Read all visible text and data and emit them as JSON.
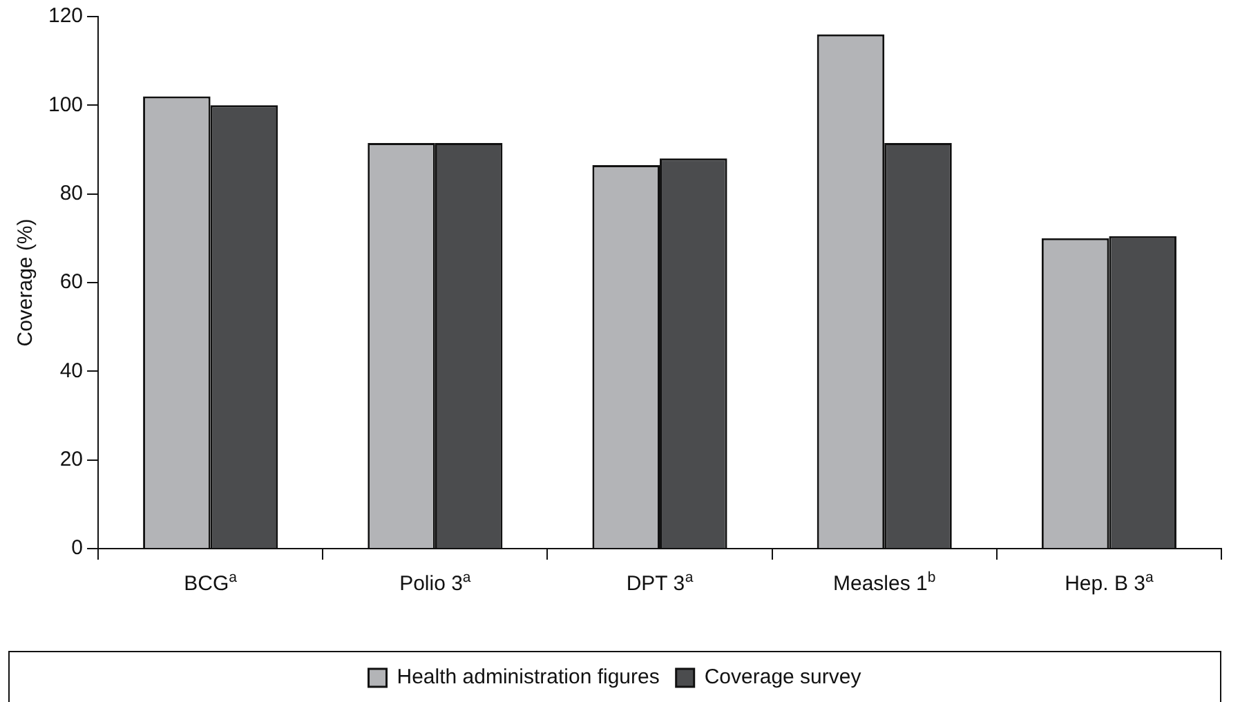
{
  "chart_data": {
    "type": "bar",
    "ylabel": "Coverage (%)",
    "categories": [
      "BCG$^{a}$",
      "Polio 3$^{a}$",
      "DPT 3$^{a}$",
      "Measles 1$^{b}$",
      "Hep. B 3$^{a}$"
    ],
    "series": [
      {
        "name": "Health administration figures",
        "color": "#b3b4b7",
        "values": [
          102,
          91.5,
          86.5,
          116,
          70
        ]
      },
      {
        "name": "Coverage survey",
        "color": "#4b4c4e",
        "values": [
          100,
          91.5,
          88,
          91.5,
          70.5
        ]
      }
    ],
    "ylim": [
      0,
      120
    ],
    "yticks": [
      0,
      20,
      40,
      60,
      80,
      100,
      120
    ],
    "grid": false,
    "legend": "bottom"
  }
}
